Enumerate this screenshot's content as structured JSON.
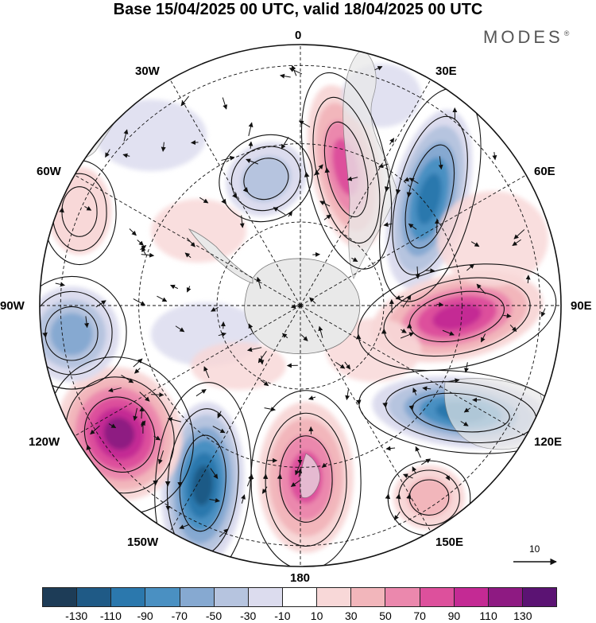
{
  "title": "Base 15/04/2025 00 UTC, valid 18/04/2025 00 UTC",
  "brand": {
    "text": "MODES",
    "mark": "®"
  },
  "map": {
    "projection": "south-polar-stereographic",
    "longitude_labels": {
      "top": "0",
      "top_left_1": "30W",
      "top_right_1": "30E",
      "upper_left": "60W",
      "upper_right": "60E",
      "left": "90W",
      "right": "90E",
      "lower_left": "120W",
      "lower_right": "120E",
      "bottom_left_1": "150W",
      "bottom_right_1": "150E",
      "bottom": "180"
    },
    "vector_reference": "10",
    "palette": {
      "land": "#e9e9e9",
      "coast": "#7a7a7a",
      "grid": "#111111",
      "arrow": "#111111"
    },
    "anomaly_centers": [
      {
        "lon_label": "0-30E",
        "sign": "positive",
        "level": 90
      },
      {
        "lon_label": "30E-60E",
        "sign": "negative",
        "level": -110
      },
      {
        "lon_label": "60E-90E",
        "sign": "positive",
        "level": 110
      },
      {
        "lon_label": "100E-120E",
        "sign": "negative",
        "level": -110
      },
      {
        "lon_label": "150E",
        "sign": "positive",
        "level": 50
      },
      {
        "lon_label": "180",
        "sign": "positive",
        "level": 90
      },
      {
        "lon_label": "150W-180",
        "sign": "negative",
        "level": -130
      },
      {
        "lon_label": "120W",
        "sign": "positive",
        "level": 130
      },
      {
        "lon_label": "90W",
        "sign": "negative",
        "level": -70
      },
      {
        "lon_label": "60W-90W",
        "sign": "positive",
        "level": 30
      },
      {
        "lon_label": "0-30W",
        "sign": "negative",
        "level": -50
      }
    ]
  },
  "colorbar": {
    "colors": [
      "#1d3c57",
      "#1f5a86",
      "#2b78ad",
      "#4a90c2",
      "#86a9d1",
      "#b6c4df",
      "#dcdcee",
      "#ffffff",
      "#f8d8d8",
      "#f2b6bb",
      "#eb88ad",
      "#dd509c",
      "#c42a94",
      "#8e1a82",
      "#5b1373"
    ],
    "ticks": [
      "-130",
      "-110",
      "-90",
      "-70",
      "-50",
      "-30",
      "-10",
      "10",
      "30",
      "50",
      "70",
      "90",
      "110",
      "130"
    ]
  }
}
